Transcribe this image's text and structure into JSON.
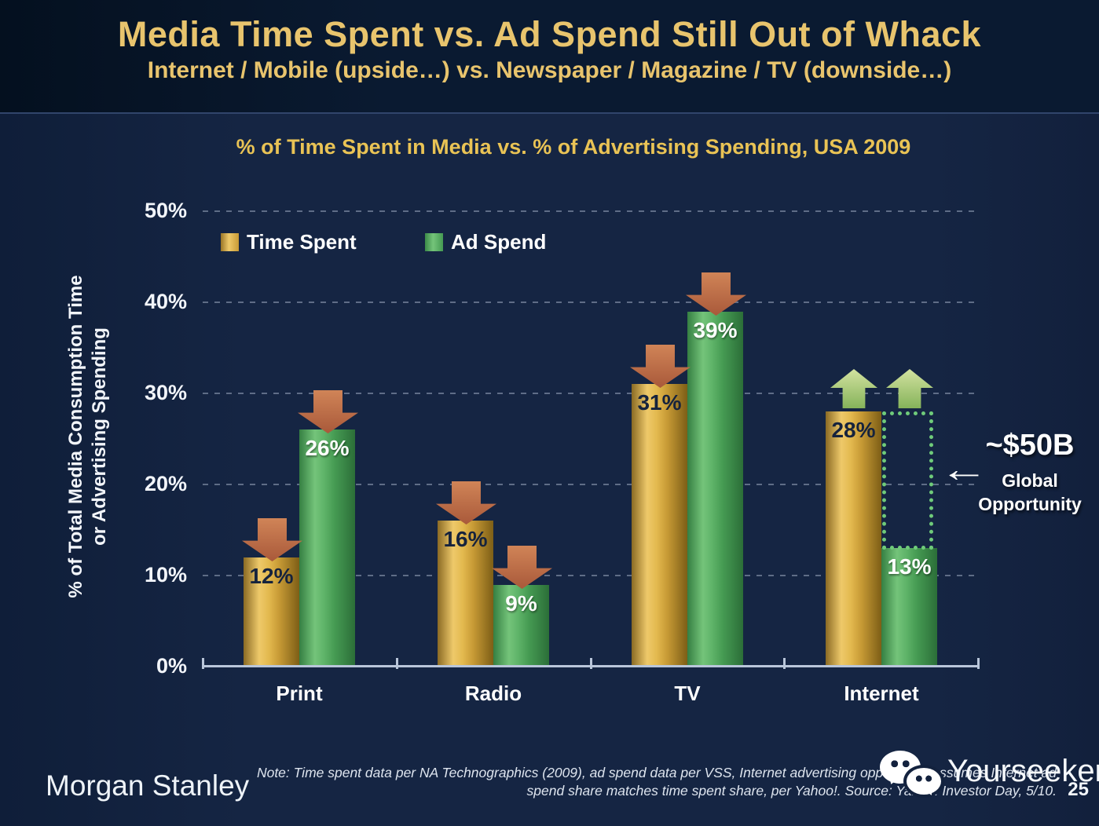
{
  "slide": {
    "title": "Media Time Spent vs. Ad Spend Still Out of Whack",
    "subtitle": "Internet / Mobile (upside…) vs. Newspaper / Magazine / TV (downside…)"
  },
  "chart_data": {
    "type": "bar",
    "title": "% of Time Spent in Media vs. % of Advertising Spending, USA 2009",
    "ylabel_line1": "% of Total Media Consumption Time",
    "ylabel_line2": "or Advertising Spending",
    "ylim": [
      0,
      50
    ],
    "yticks": [
      0,
      10,
      20,
      30,
      40,
      50
    ],
    "ytick_suffix": "%",
    "grid": "horizontal dashed",
    "legend_position": "top-left inside plot",
    "categories": [
      "Print",
      "Radio",
      "TV",
      "Internet"
    ],
    "series": [
      {
        "name": "Time Spent",
        "color": "#e0b54d",
        "values": [
          12,
          16,
          31,
          28
        ],
        "trends": [
          "down",
          "down",
          "down",
          "up"
        ]
      },
      {
        "name": "Ad Spend",
        "color": "#56ab61",
        "values": [
          26,
          9,
          39,
          13
        ],
        "trends": [
          "down",
          "down",
          "down",
          "up"
        ]
      }
    ],
    "value_label_format": "{v}%",
    "annotation": {
      "amount": "~$50B",
      "label": "Global Opportunity",
      "attached_to": "Internet",
      "box_top_value": 28,
      "box_bottom_value": 13
    }
  },
  "colors": {
    "title_gold": "#e8c46d",
    "chart_title_gold": "#e9c355",
    "time_spent_gold": "#e0b54d",
    "ad_spend_green": "#56ab61",
    "down_arrow_red": "#bb6343",
    "up_arrow_green": "#a8cc78",
    "dotted_box_green": "#6fcb7a",
    "background_navy": "#152543"
  },
  "footer": {
    "brand": "Morgan Stanley",
    "note_line1": "Note: Time spent data per NA Technographics (2009), ad spend data per VSS, Internet advertising opportunity assumes Internet ad",
    "note_line2": "spend share matches time spent share, per Yahoo!. Source: Yahoo! Investor Day, 5/10.",
    "watermark": "Yourseeker",
    "page_number": "25"
  }
}
